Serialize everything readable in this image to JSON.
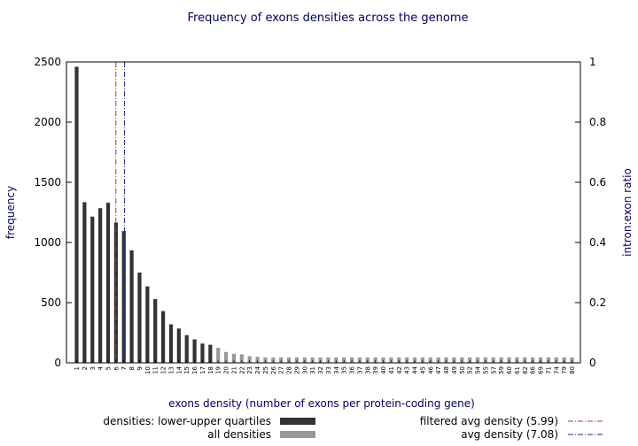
{
  "chart_data": {
    "type": "bar",
    "title": "Frequency of exons densities across the genome",
    "xlabel": "exons density (number of exons per protein-coding gene)",
    "ylabel": "frequency",
    "y2label": "intron:exon ratio",
    "ylim": [
      0,
      2500
    ],
    "y2lim": [
      0,
      1
    ],
    "yticks": [
      "0",
      "500",
      "1000",
      "1500",
      "2000",
      "2500"
    ],
    "y2ticks": [
      "0",
      "0.2",
      "0.4",
      "0.6",
      "0.8",
      "1"
    ],
    "categories": [
      "1",
      "2",
      "3",
      "4",
      "5",
      "6",
      "7",
      "8",
      "9",
      "10",
      "11",
      "12",
      "13",
      "14",
      "15",
      "16",
      "17",
      "18",
      "19",
      "20",
      "21",
      "22",
      "23",
      "24",
      "25",
      "26",
      "27",
      "28",
      "29",
      "30",
      "31",
      "32",
      "33",
      "34",
      "35",
      "36",
      "37",
      "38",
      "39",
      "40",
      "41",
      "42",
      "43",
      "44",
      "45",
      "46",
      "47",
      "48",
      "49",
      "50",
      "52",
      "54",
      "55",
      "57",
      "59",
      "60",
      "61",
      "62",
      "66",
      "69",
      "71",
      "74",
      "79",
      "80"
    ],
    "series": [
      {
        "name": "densities: lower-upper quartiles",
        "color": "#333333",
        "values": [
          2460,
          1335,
          1215,
          1285,
          1330,
          1165,
          1095,
          935,
          750,
          635,
          530,
          430,
          320,
          285,
          230,
          195,
          160,
          150,
          0,
          0,
          0,
          0,
          0,
          0,
          0,
          0,
          0,
          0,
          0,
          0,
          0,
          0,
          0,
          0,
          0,
          0,
          0,
          0,
          0,
          0,
          0,
          0,
          0,
          0,
          0,
          0,
          0,
          0,
          0,
          0,
          0,
          0,
          0,
          0,
          0,
          0,
          0,
          0,
          0,
          0,
          0,
          0,
          0,
          0
        ]
      },
      {
        "name": "all densities",
        "color": "#999999",
        "values": [
          0,
          0,
          0,
          0,
          0,
          0,
          0,
          0,
          0,
          0,
          0,
          0,
          0,
          0,
          0,
          0,
          0,
          0,
          125,
          90,
          75,
          70,
          55,
          50,
          45,
          45,
          45,
          45,
          45,
          45,
          45,
          45,
          45,
          45,
          45,
          45,
          45,
          45,
          45,
          45,
          45,
          45,
          45,
          45,
          45,
          45,
          45,
          45,
          45,
          45,
          45,
          45,
          45,
          45,
          45,
          45,
          45,
          45,
          45,
          45,
          45,
          45,
          45,
          45
        ]
      }
    ],
    "reference_lines": [
      {
        "name": "filtered avg density (5.99)",
        "x": 5.99,
        "color": "#aa2288"
      },
      {
        "name": "avg density (7.08)",
        "x": 7.08,
        "color": "#2222aa"
      }
    ],
    "legend": "bottom"
  }
}
